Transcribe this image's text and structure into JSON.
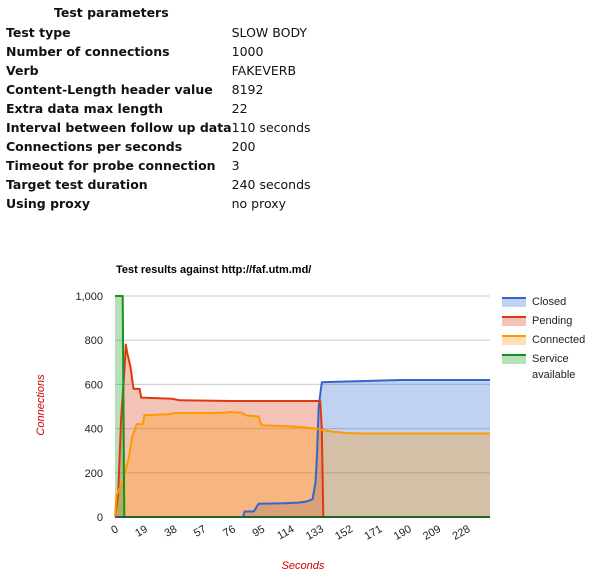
{
  "params": {
    "title": "Test parameters",
    "rows": [
      {
        "key": "Test type",
        "value": "SLOW BODY"
      },
      {
        "key": "Number of connections",
        "value": "1000"
      },
      {
        "key": "Verb",
        "value": "FAKEVERB"
      },
      {
        "key": "Content-Length header value",
        "value": "8192"
      },
      {
        "key": "Extra data max length",
        "value": "22"
      },
      {
        "key": "Interval between follow up data",
        "value": "110 seconds"
      },
      {
        "key": "Connections per seconds",
        "value": "200"
      },
      {
        "key": "Timeout for probe connection",
        "value": "3"
      },
      {
        "key": "Target test duration",
        "value": "240 seconds"
      },
      {
        "key": "Using proxy",
        "value": "no proxy"
      }
    ]
  },
  "chart_data": {
    "type": "area",
    "title": "Test results against http://faf.utm.md/",
    "xlabel": "Seconds",
    "ylabel": "Connections",
    "xlim": [
      0,
      243
    ],
    "ylim": [
      0,
      1000
    ],
    "x_ticks": [
      "0",
      "19",
      "38",
      "57",
      "76",
      "95",
      "114",
      "133",
      "152",
      "171",
      "190",
      "209",
      "228"
    ],
    "y_ticks": [
      "0",
      "200",
      "400",
      "600",
      "800",
      "1,000"
    ],
    "grid": true,
    "legend_position": "right",
    "series": [
      {
        "name": "Closed",
        "color": "#3366cc",
        "points": [
          [
            0,
            0
          ],
          [
            83,
            0
          ],
          [
            84,
            25
          ],
          [
            90,
            25
          ],
          [
            93,
            60
          ],
          [
            110,
            62
          ],
          [
            119,
            65
          ],
          [
            124,
            70
          ],
          [
            128,
            80
          ],
          [
            130,
            160
          ],
          [
            131,
            300
          ],
          [
            132,
            500
          ],
          [
            134,
            610
          ],
          [
            144,
            612
          ],
          [
            160,
            615
          ],
          [
            186,
            620
          ],
          [
            243,
            620
          ]
        ]
      },
      {
        "name": "Pending",
        "color": "#dc3912",
        "points": [
          [
            0,
            0
          ],
          [
            2,
            100
          ],
          [
            4,
            450
          ],
          [
            6,
            650
          ],
          [
            7,
            780
          ],
          [
            8,
            740
          ],
          [
            10,
            680
          ],
          [
            12,
            580
          ],
          [
            16,
            580
          ],
          [
            17,
            540
          ],
          [
            37,
            535
          ],
          [
            42,
            528
          ],
          [
            75,
            525
          ],
          [
            133,
            525
          ],
          [
            134,
            400
          ],
          [
            135,
            0
          ],
          [
            243,
            0
          ]
        ]
      },
      {
        "name": "Connected",
        "color": "#ff9900",
        "points": [
          [
            0,
            0
          ],
          [
            1,
            100
          ],
          [
            5,
            160
          ],
          [
            9,
            270
          ],
          [
            11,
            360
          ],
          [
            14,
            420
          ],
          [
            18,
            420
          ],
          [
            19,
            460
          ],
          [
            35,
            465
          ],
          [
            38,
            470
          ],
          [
            57,
            470
          ],
          [
            70,
            472
          ],
          [
            75,
            475
          ],
          [
            82,
            472
          ],
          [
            85,
            460
          ],
          [
            93,
            455
          ],
          [
            95,
            415
          ],
          [
            114,
            410
          ],
          [
            124,
            405
          ],
          [
            130,
            400
          ],
          [
            133,
            395
          ],
          [
            142,
            385
          ],
          [
            150,
            380
          ],
          [
            160,
            378
          ],
          [
            243,
            378
          ]
        ]
      },
      {
        "name": "Service available",
        "color": "#109618",
        "points": [
          [
            0,
            1000
          ],
          [
            5,
            1000
          ],
          [
            6,
            0
          ],
          [
            243,
            0
          ]
        ]
      }
    ]
  }
}
